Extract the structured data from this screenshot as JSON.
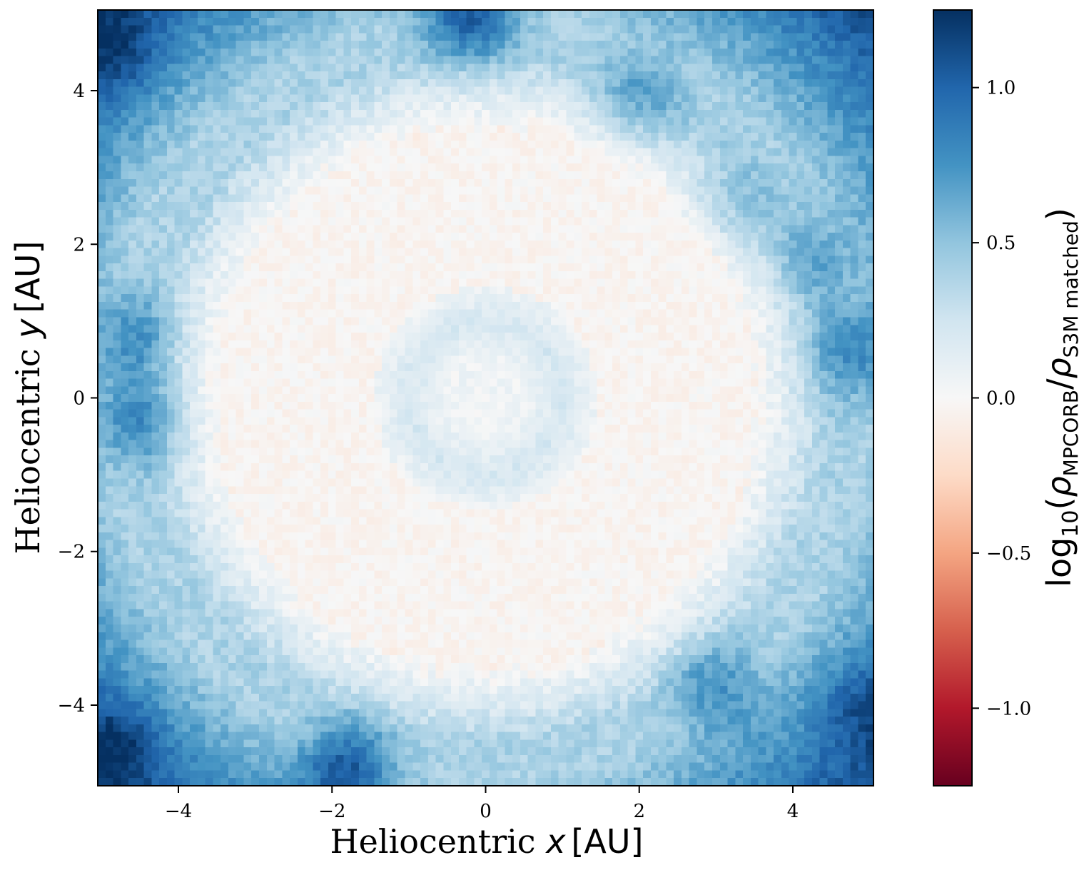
{
  "chart_data": {
    "type": "heatmap",
    "title": "",
    "xlabel": "Heliocentric x [AU]",
    "ylabel": "Heliocentric y [AU]",
    "xlabel_parts": {
      "prefix": "Heliocentric ",
      "var": "x",
      "unit": "[AU]"
    },
    "ylabel_parts": {
      "prefix": "Heliocentric ",
      "var": "y",
      "unit": "[AU]"
    },
    "xlim": [
      -5.05,
      5.05
    ],
    "ylim": [
      -5.05,
      5.05
    ],
    "x_ticks": [
      -4,
      -2,
      0,
      2,
      4
    ],
    "y_ticks": [
      -4,
      -2,
      0,
      2,
      4
    ],
    "x_tick_labels": [
      "−4",
      "−2",
      "0",
      "2",
      "4"
    ],
    "y_tick_labels": [
      "−4",
      "−2",
      "0",
      "2",
      "4"
    ],
    "colormap": "RdBu",
    "color_range": [
      -1.25,
      1.25
    ],
    "colorbar": {
      "label": "log10(ρMPCORB/ρS3M matched)",
      "label_parts": {
        "log": "log",
        "log_sub": "10",
        "open": "(",
        "rho1": "ρ",
        "sub1": "MPCORB",
        "slash": "/",
        "rho2": "ρ",
        "sub2": "S3M matched",
        "close": ")"
      },
      "ticks": [
        -1.0,
        -0.5,
        0.0,
        0.5,
        1.0
      ],
      "tick_labels": [
        "−1.0",
        "−0.5",
        "0.0",
        "0.5",
        "1.0"
      ],
      "colors": [
        "#67001f",
        "#b2182b",
        "#d6604d",
        "#f4a582",
        "#fddbc7",
        "#f7f7f7",
        "#d1e5f0",
        "#92c5de",
        "#4393c3",
        "#2166ac",
        "#053061"
      ]
    },
    "grid": false,
    "grid_cells": [
      101,
      101
    ],
    "field_description_values": {
      "inner_ring_radius_au": 1.0,
      "main_disk_radius_au": 3.5,
      "inner_value": 0.22,
      "disk_value": -0.03,
      "outer_value": 0.4
    },
    "hotspots": [
      {
        "x": -0.2,
        "y": 5.0,
        "value": 1.0
      },
      {
        "x": -1.8,
        "y": -4.8,
        "value": 0.95
      },
      {
        "x": 4.8,
        "y": 0.6,
        "value": 0.75
      },
      {
        "x": -4.6,
        "y": 0.8,
        "value": 0.7
      },
      {
        "x": -4.5,
        "y": -0.3,
        "value": 0.75
      },
      {
        "x": 2.0,
        "y": 3.9,
        "value": 0.65
      },
      {
        "x": 3.2,
        "y": 2.5,
        "value": 0.55
      },
      {
        "x": 4.3,
        "y": 1.8,
        "value": 0.6
      },
      {
        "x": 3.0,
        "y": -3.8,
        "value": 0.7
      },
      {
        "x": -4.8,
        "y": -4.5,
        "value": 0.65
      },
      {
        "x": -4.8,
        "y": 4.5,
        "value": 0.6
      },
      {
        "x": 4.9,
        "y": -4.0,
        "value": 0.6
      }
    ]
  }
}
